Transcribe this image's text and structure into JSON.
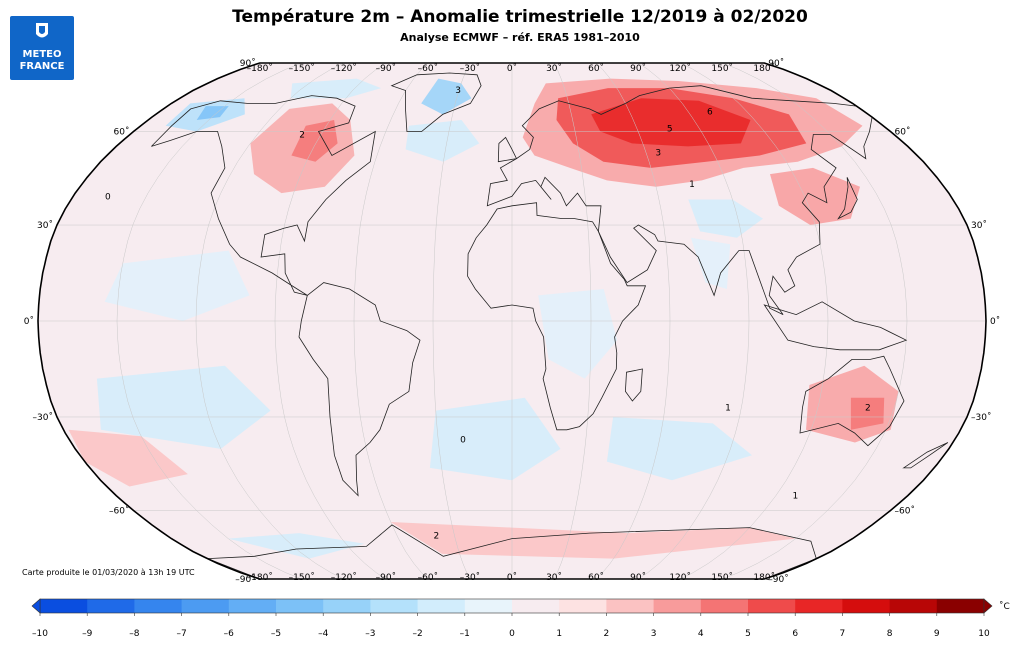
{
  "header": {
    "title": "Température 2m – Anomalie trimestrielle 12/2019 à 02/2020",
    "subtitle": "Analyse ECMWF – réf. ERA5 1981–2010"
  },
  "logo": {
    "line1": "METEO",
    "line2": "FRANCE",
    "icon": "meteo-france-logo-icon",
    "color": "#1066c8"
  },
  "map": {
    "projection": "Robinson",
    "lon_ticks": [
      "–180˚",
      "–150˚",
      "–120˚",
      "–90˚",
      "–60˚",
      "–30˚",
      "0˚",
      "30˚",
      "60˚",
      "90˚",
      "120˚",
      "150˚",
      "180˚"
    ],
    "lat_ticks_left": [
      "90˚",
      "60˚",
      "30˚",
      "0˚",
      "–30˚",
      "–60˚",
      "–90˚"
    ],
    "lat_ticks_right": [
      "90˚",
      "60˚",
      "30˚",
      "0˚",
      "–30˚",
      "–60˚",
      "–90˚"
    ],
    "contour_labels": [
      {
        "text": "3",
        "region": "Greenland"
      },
      {
        "text": "2",
        "region": "Canada"
      },
      {
        "text": "0",
        "region": "North Pacific"
      },
      {
        "text": "6",
        "region": "Siberia"
      },
      {
        "text": "5",
        "region": "Russia"
      },
      {
        "text": "3",
        "region": "Western Siberia"
      },
      {
        "text": "1",
        "region": "Kazakhstan"
      },
      {
        "text": "2",
        "region": "Australia"
      },
      {
        "text": "1",
        "region": "Indian Ocean"
      },
      {
        "text": "0",
        "region": "South Atlantic"
      },
      {
        "text": "2",
        "region": "Antarctica"
      },
      {
        "text": "1",
        "region": "Southern Ocean"
      }
    ]
  },
  "colorbar": {
    "unit": "˚C",
    "ticks": [
      "–10",
      "–9",
      "–8",
      "–7",
      "–6",
      "–5",
      "–4",
      "–3",
      "–2",
      "–1",
      "0",
      "1",
      "2",
      "3",
      "4",
      "5",
      "6",
      "7",
      "8",
      "9",
      "10"
    ],
    "colors": [
      "#0a4ee0",
      "#1f6ae8",
      "#3585ee",
      "#4c9bf2",
      "#63aef5",
      "#7cc1f7",
      "#97d2f9",
      "#b4e1fb",
      "#d2edfc",
      "#e8f4fb",
      "#f7ecf0",
      "#fde2e2",
      "#fbc2c2",
      "#f89b9b",
      "#f47474",
      "#ef4b4b",
      "#e82626",
      "#d50d0d",
      "#b80606",
      "#8a0000"
    ]
  },
  "footer": {
    "credit": "Carte produite le 01/03/2020 à 13h 19 UTC"
  }
}
